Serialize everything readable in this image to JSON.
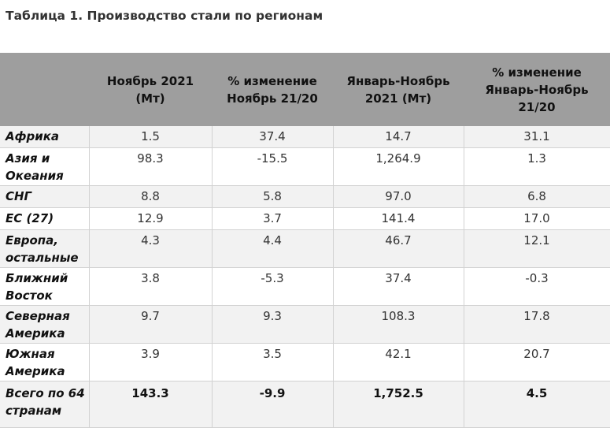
{
  "title": "Таблица 1. Производство стали по регионам",
  "columns": [
    "",
    "Ноябрь 2021 (Мт)",
    "% изменение Ноябрь 21/20",
    "Январь-Ноябрь 2021 (Мт)",
    "% изменение Январь-Ноябрь 21/20"
  ],
  "rows": [
    {
      "region": "Африка",
      "nov": "1.5",
      "nov_chg": "37.4",
      "ytd": "14.7",
      "ytd_chg": "31.1"
    },
    {
      "region": "Азия и Океания",
      "nov": "98.3",
      "nov_chg": "-15.5",
      "ytd": "1,264.9",
      "ytd_chg": "1.3"
    },
    {
      "region": "СНГ",
      "nov": "8.8",
      "nov_chg": "5.8",
      "ytd": "97.0",
      "ytd_chg": "6.8"
    },
    {
      "region": "ЕС (27)",
      "nov": "12.9",
      "nov_chg": "3.7",
      "ytd": "141.4",
      "ytd_chg": "17.0"
    },
    {
      "region": "Европа, остальные",
      "nov": "4.3",
      "nov_chg": "4.4",
      "ytd": "46.7",
      "ytd_chg": "12.1"
    },
    {
      "region": "Ближний Восток",
      "nov": "3.8",
      "nov_chg": "-5.3",
      "ytd": "37.4",
      "ytd_chg": "-0.3"
    },
    {
      "region": "Северная Америка",
      "nov": "9.7",
      "nov_chg": "9.3",
      "ytd": "108.3",
      "ytd_chg": "17.8"
    },
    {
      "region": "Южная Америка",
      "nov": "3.9",
      "nov_chg": "3.5",
      "ytd": "42.1",
      "ytd_chg": "20.7"
    }
  ],
  "total": {
    "region": "Всего по 64 странам",
    "nov": "143.3",
    "nov_chg": "-9.9",
    "ytd": "1,752.5",
    "ytd_chg": "4.5"
  }
}
